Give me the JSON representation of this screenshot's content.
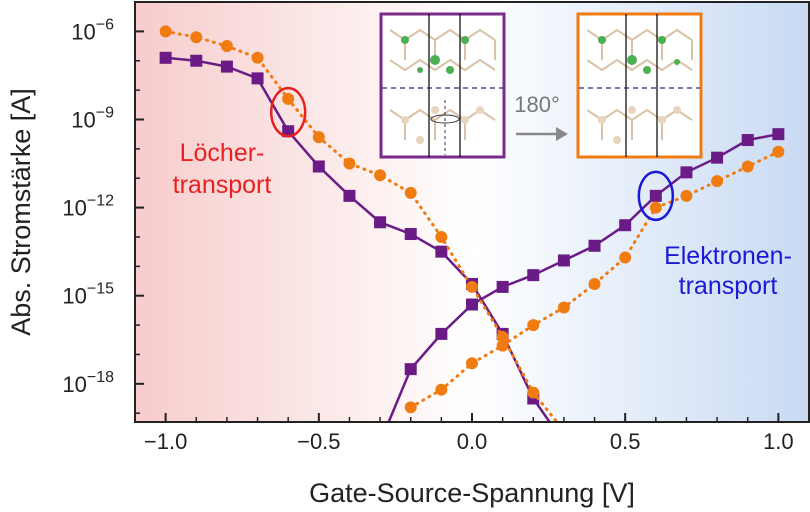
{
  "chart_data": {
    "type": "line",
    "title": "",
    "xlabel": "Gate-Source-Spannung [V]",
    "ylabel": "Abs. Stromstärke [A]",
    "xlim": [
      -1.1,
      1.1
    ],
    "y_scale": "log",
    "ylim_exponent": [
      -19.3,
      -5.0
    ],
    "x_ticks": [
      -1.0,
      -0.5,
      0.0,
      0.5,
      1.0
    ],
    "x_tick_labels": [
      "−1.0",
      "−0.5",
      "0.0",
      "0.5",
      "1.0"
    ],
    "y_ticks": [
      -6,
      -9,
      -12,
      -15,
      -18
    ],
    "y_tick_base": "10",
    "y_tick_exponents": [
      "−6",
      "−9",
      "−12",
      "−15",
      "−18"
    ],
    "grid": false,
    "legend": null,
    "background_gradient": [
      "#f7cccc",
      "#ffffff",
      "#c8daf3"
    ],
    "series": [
      {
        "color": "#6a1b86",
        "marker": "square",
        "line": "solid",
        "x": [
          -1.0,
          -0.9,
          -0.8,
          -0.7,
          -0.6,
          -0.5,
          -0.4,
          -0.3,
          -0.2,
          -0.1,
          0.0,
          0.1,
          0.2,
          0.3
        ],
        "y_exp": [
          -6.9,
          -7.0,
          -7.2,
          -7.6,
          -9.4,
          -10.6,
          -11.6,
          -12.5,
          -12.9,
          -13.5,
          -14.6,
          -16.3,
          -18.5,
          -20.0
        ]
      },
      {
        "color": "#6a1b86",
        "marker": "square",
        "line": "solid",
        "x": [
          -0.3,
          -0.2,
          -0.1,
          0.0,
          0.1,
          0.2,
          0.3,
          0.4,
          0.5,
          0.6,
          0.7,
          0.8,
          0.9,
          1.0
        ],
        "y_exp": [
          -20.0,
          -17.5,
          -16.3,
          -15.3,
          -14.7,
          -14.3,
          -13.8,
          -13.3,
          -12.6,
          -11.6,
          -10.8,
          -10.3,
          -9.7,
          -9.5
        ]
      },
      {
        "color": "#f07b10",
        "marker": "circle",
        "line": "dotted",
        "x": [
          -1.0,
          -0.9,
          -0.8,
          -0.7,
          -0.6,
          -0.5,
          -0.4,
          -0.3,
          -0.2,
          -0.1,
          0.0,
          0.1,
          0.2,
          0.3
        ],
        "y_exp": [
          -6.0,
          -6.2,
          -6.5,
          -6.9,
          -8.3,
          -9.6,
          -10.5,
          -10.9,
          -11.5,
          -13.0,
          -14.7,
          -16.4,
          -18.3,
          -19.6
        ]
      },
      {
        "color": "#f07b10",
        "marker": "circle",
        "line": "dotted",
        "x": [
          -0.2,
          -0.1,
          0.0,
          0.1,
          0.2,
          0.3,
          0.4,
          0.5,
          0.6,
          0.7,
          0.8,
          0.9,
          1.0
        ],
        "y_exp": [
          -18.8,
          -18.2,
          -17.3,
          -16.7,
          -16.0,
          -15.4,
          -14.6,
          -13.7,
          -12.0,
          -11.6,
          -11.1,
          -10.6,
          -10.1
        ]
      }
    ],
    "annotations": [
      {
        "id": "hole",
        "lines": [
          "Löcher-",
          "transport"
        ],
        "color": "#e8201f",
        "circle_x": -0.6,
        "circle_y_exp": -8.75
      },
      {
        "id": "electron",
        "lines": [
          "Elektronen-",
          "transport"
        ],
        "color": "#1a1ad6",
        "circle_x": 0.6,
        "circle_y_exp": -11.6
      }
    ],
    "inset": {
      "rotation_label": "180°",
      "left_border": "#7a2a8a",
      "right_border": "#f07b10"
    }
  }
}
